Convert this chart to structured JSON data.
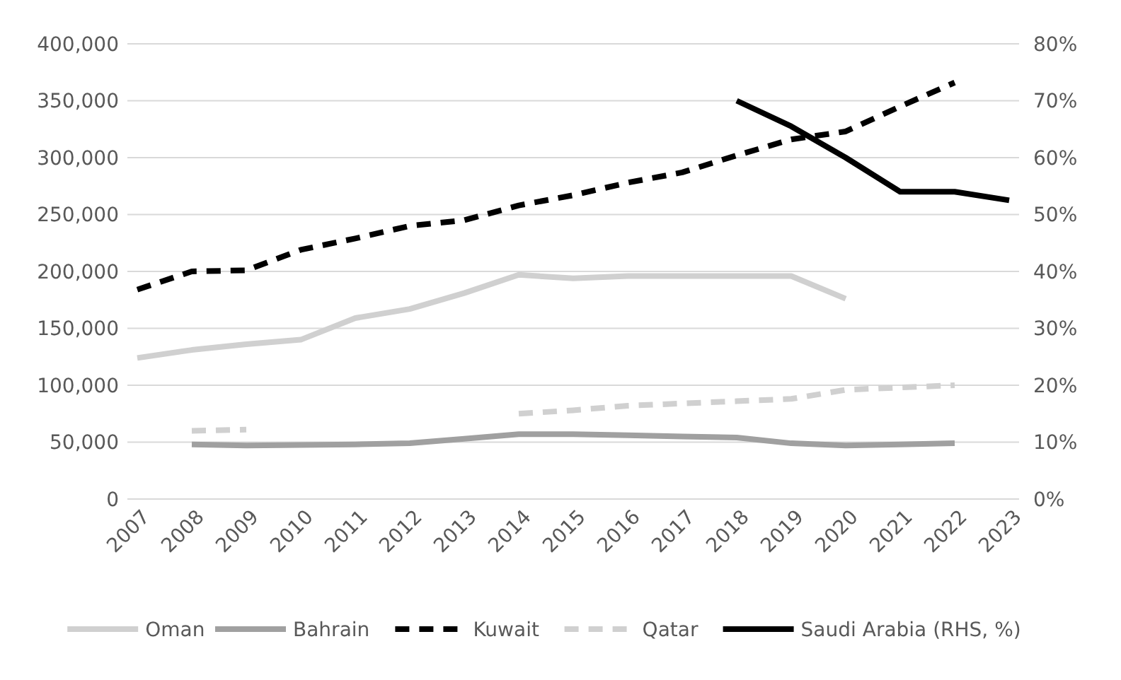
{
  "chart_data": {
    "type": "line",
    "categories": [
      "2007",
      "2008",
      "2009",
      "2010",
      "2011",
      "2012",
      "2013",
      "2014",
      "2015",
      "2016",
      "2017",
      "2018",
      "2019",
      "2020",
      "2021",
      "2022",
      "2023"
    ],
    "ylim": [
      0,
      400000
    ],
    "yticks": [
      {
        "value": 0,
        "label": "0"
      },
      {
        "value": 50000,
        "label": "50,000"
      },
      {
        "value": 100000,
        "label": "100,000"
      },
      {
        "value": 150000,
        "label": "150,000"
      },
      {
        "value": 200000,
        "label": "200,000"
      },
      {
        "value": 250000,
        "label": "250,000"
      },
      {
        "value": 300000,
        "label": "300,000"
      },
      {
        "value": 350000,
        "label": "350,000"
      },
      {
        "value": 400000,
        "label": "400,000"
      }
    ],
    "y2lim": [
      0,
      80
    ],
    "y2ticks": [
      {
        "value": 0,
        "label": "0%"
      },
      {
        "value": 10,
        "label": "10%"
      },
      {
        "value": 20,
        "label": "20%"
      },
      {
        "value": 30,
        "label": "30%"
      },
      {
        "value": 40,
        "label": "40%"
      },
      {
        "value": 50,
        "label": "50%"
      },
      {
        "value": 60,
        "label": "60%"
      },
      {
        "value": 70,
        "label": "70%"
      },
      {
        "value": 80,
        "label": "80%"
      }
    ],
    "grid": "y",
    "legend": "bottom",
    "marker": "none",
    "series": [
      {
        "name": "Oman",
        "color": "#d0d0d0",
        "line_style": "solid",
        "values": [
          124000,
          131000,
          136000,
          140000,
          159000,
          167000,
          181000,
          197000,
          194000,
          196000,
          196000,
          196000,
          196000,
          176000,
          null,
          null,
          null
        ]
      },
      {
        "name": "Bahrain",
        "color": "#a0a0a0",
        "line_style": "solid",
        "values": [
          null,
          48000,
          47000,
          47500,
          48000,
          49000,
          53000,
          57000,
          57000,
          56000,
          55000,
          54000,
          49000,
          47000,
          48000,
          49000,
          null
        ]
      },
      {
        "name": "Kuwait",
        "color": "#000000",
        "line_style": "dashed",
        "values": [
          184000,
          200000,
          201000,
          219000,
          229000,
          240000,
          245000,
          258000,
          267000,
          278000,
          287000,
          302000,
          316000,
          323000,
          345000,
          366000,
          null
        ]
      },
      {
        "name": "Qatar",
        "color": "#d0d0d0",
        "line_style": "dashed",
        "values": [
          null,
          60000,
          61000,
          null,
          null,
          null,
          null,
          75000,
          78000,
          82000,
          84000,
          86000,
          88000,
          96000,
          98000,
          100000,
          null
        ]
      },
      {
        "name": "Saudi Arabia (RHS, %)",
        "color": "#000000",
        "line_style": "solid",
        "axis": "y2",
        "values": [
          null,
          null,
          null,
          null,
          null,
          null,
          null,
          null,
          null,
          null,
          null,
          70,
          65.5,
          60,
          54,
          54,
          52.5
        ]
      }
    ]
  }
}
